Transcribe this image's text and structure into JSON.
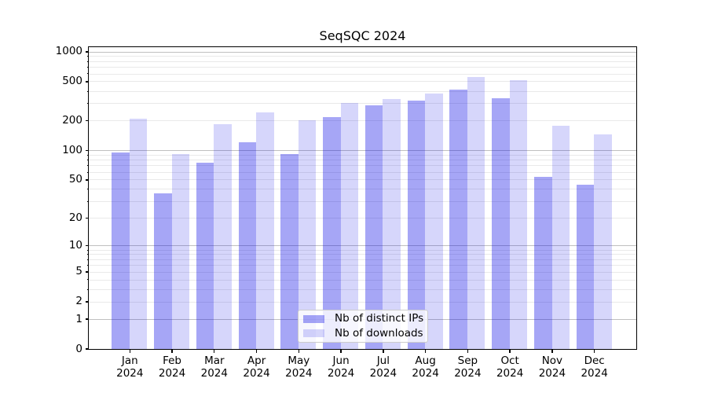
{
  "chart_data": {
    "type": "bar",
    "title": "SeqSQC 2024",
    "categories": [
      "Jan 2024",
      "Feb 2024",
      "Mar 2024",
      "Apr 2024",
      "May 2024",
      "Jun 2024",
      "Jul 2024",
      "Aug 2024",
      "Sep 2024",
      "Oct 2024",
      "Nov 2024",
      "Dec 2024"
    ],
    "series": [
      {
        "name": "Nb of distinct IPs",
        "color": "rgba(0,0,230,0.35)",
        "values": [
          94,
          36,
          74,
          120,
          92,
          219,
          284,
          317,
          410,
          340,
          53,
          44
        ]
      },
      {
        "name": "Nb of downloads",
        "color": "rgba(0,0,230,0.16)",
        "values": [
          208,
          92,
          183,
          241,
          203,
          304,
          333,
          375,
          553,
          510,
          178,
          146
        ]
      }
    ],
    "xlabel": "",
    "ylabel": "",
    "yscale": "log1p",
    "ylim": [
      0,
      1116
    ],
    "ytick_labels": [
      0,
      1,
      2,
      5,
      10,
      20,
      50,
      100,
      200,
      500,
      1000
    ],
    "major_grid_values": [
      1,
      10,
      100,
      1000
    ],
    "grid": "horizontal",
    "legend_position": "lower-center"
  },
  "colors": {
    "major_grid": "#c0c0c0",
    "minor_grid": "#e9e9e9",
    "spine": "#000000",
    "background": "#ffffff"
  }
}
